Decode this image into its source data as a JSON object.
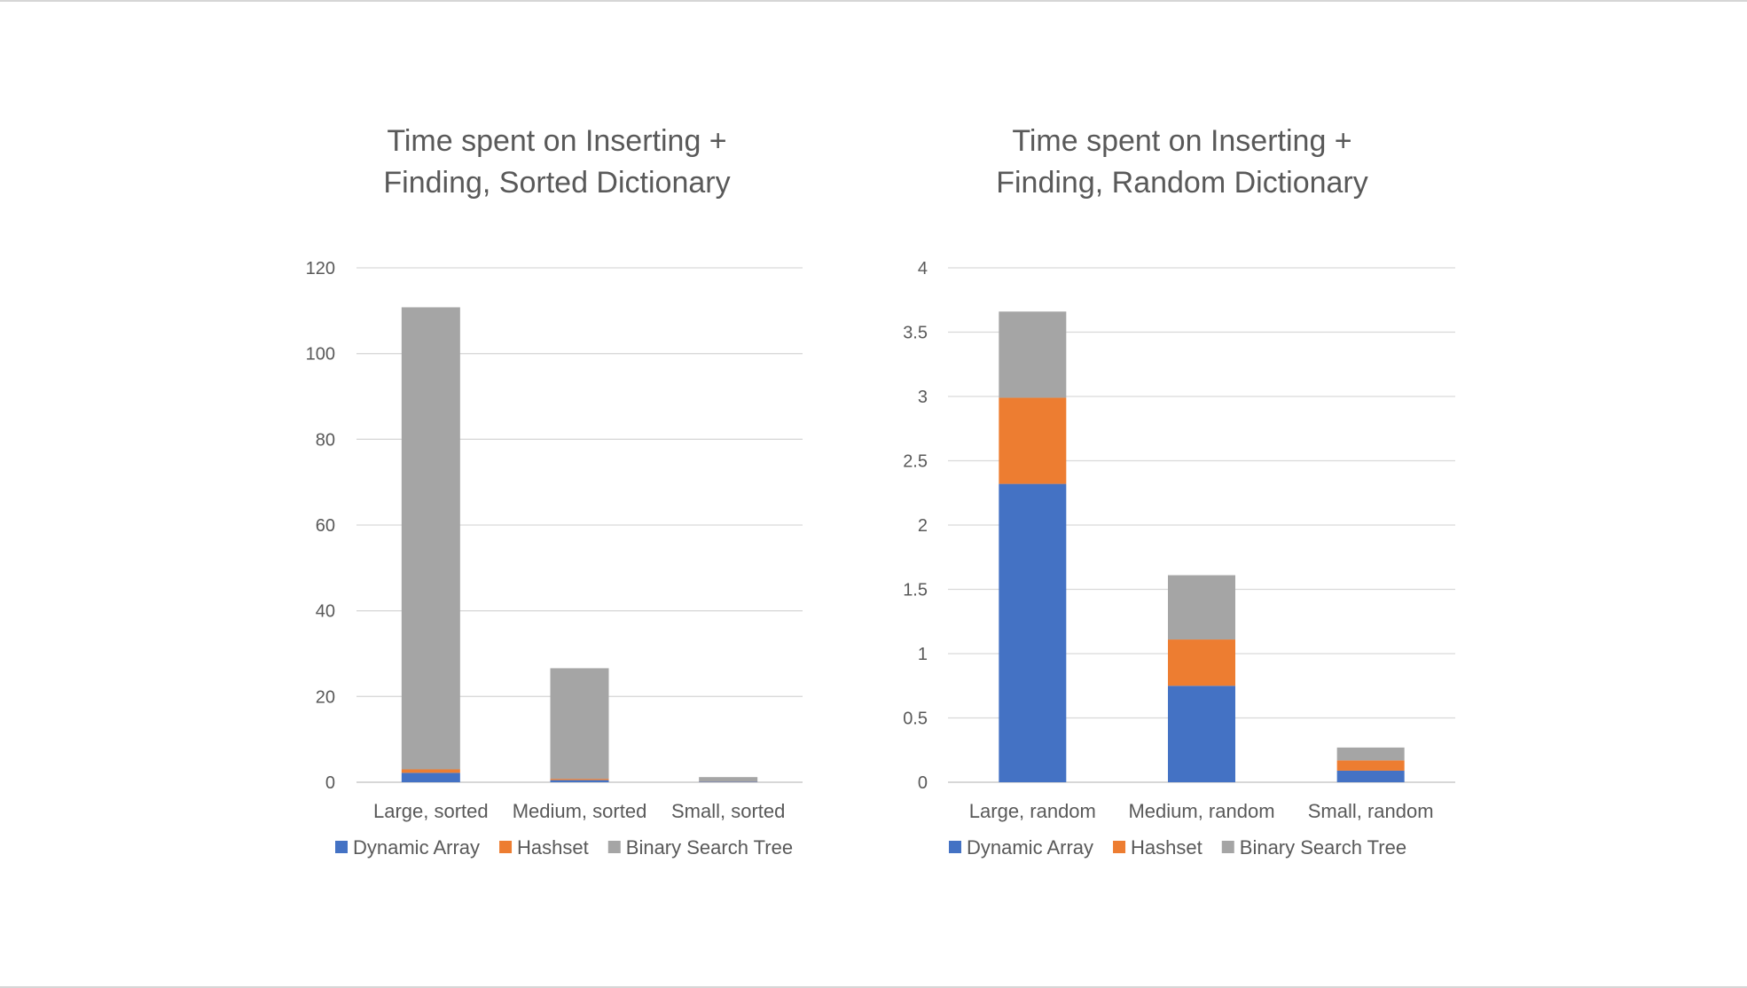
{
  "chart_data": [
    {
      "type": "bar",
      "stacked": true,
      "title_lines": [
        "Time spent on Inserting +",
        "Finding, Sorted Dictionary"
      ],
      "xlabel": "",
      "ylabel": "",
      "ylim": [
        0,
        120
      ],
      "yticks": [
        0,
        20,
        40,
        60,
        80,
        100,
        120
      ],
      "ytick_labels": [
        "0",
        "20",
        "40",
        "60",
        "80",
        "100",
        "120"
      ],
      "grid": true,
      "legend_position": "bottom",
      "categories": [
        "Large, sorted",
        "Medium, sorted",
        "Small, sorted"
      ],
      "series": [
        {
          "name": "Dynamic Array",
          "color": "#4472C4",
          "values": [
            2.2,
            0.5,
            0.1
          ]
        },
        {
          "name": "Hashset",
          "color": "#ED7D31",
          "values": [
            0.8,
            0.3,
            0.05
          ]
        },
        {
          "name": "Binary Search Tree",
          "color": "#A5A5A5",
          "values": [
            107.8,
            25.8,
            1.05
          ]
        }
      ]
    },
    {
      "type": "bar",
      "stacked": true,
      "title_lines": [
        "Time spent on Inserting +",
        "Finding, Random Dictionary"
      ],
      "xlabel": "",
      "ylabel": "",
      "ylim": [
        0,
        4
      ],
      "yticks": [
        0,
        0.5,
        1,
        1.5,
        2,
        2.5,
        3,
        3.5,
        4
      ],
      "ytick_labels": [
        "0",
        "0.5",
        "1",
        "1.5",
        "2",
        "2.5",
        "3",
        "3.5",
        "4"
      ],
      "grid": true,
      "legend_position": "bottom",
      "categories": [
        "Large, random",
        "Medium, random",
        "Small, random"
      ],
      "series": [
        {
          "name": "Dynamic Array",
          "color": "#4472C4",
          "values": [
            2.32,
            0.75,
            0.09
          ]
        },
        {
          "name": "Hashset",
          "color": "#ED7D31",
          "values": [
            0.67,
            0.36,
            0.08
          ]
        },
        {
          "name": "Binary Search Tree",
          "color": "#A5A5A5",
          "values": [
            0.67,
            0.5,
            0.1
          ]
        }
      ]
    }
  ],
  "colors": {
    "text": "#595959",
    "grid": "#d9d9d9",
    "axis": "#bfbfbf"
  }
}
